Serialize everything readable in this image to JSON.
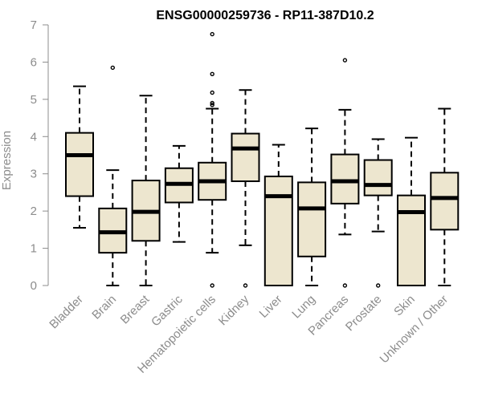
{
  "chart_data": {
    "type": "boxplot",
    "title": "ENSG00000259736 - RP11-387D10.2",
    "xlabel": "",
    "ylabel": "Expression",
    "ylim": [
      0,
      7
    ],
    "yticks": [
      0,
      1,
      2,
      3,
      4,
      5,
      6,
      7
    ],
    "grid": false,
    "legend": "none",
    "colors": {
      "box_fill": "#ede6cf",
      "outline": "#000000",
      "axis_text": "#8c8c8c"
    },
    "categories": [
      "Bladder",
      "Brain",
      "Breast",
      "Gastric",
      "Hematopoietic cells",
      "Kidney",
      "Liver",
      "Lung",
      "Pancreas",
      "Prostate",
      "Skin",
      "Unknown / Other"
    ],
    "boxes": [
      {
        "category": "Bladder",
        "whisker_low": 1.55,
        "q1": 2.4,
        "median": 3.5,
        "q3": 4.1,
        "whisker_high": 5.35,
        "outliers": []
      },
      {
        "category": "Brain",
        "whisker_low": 0.0,
        "q1": 0.88,
        "median": 1.43,
        "q3": 2.07,
        "whisker_high": 3.1,
        "outliers": [
          5.85
        ]
      },
      {
        "category": "Breast",
        "whisker_low": 0.0,
        "q1": 1.2,
        "median": 1.98,
        "q3": 2.82,
        "whisker_high": 5.1,
        "outliers": []
      },
      {
        "category": "Gastric",
        "whisker_low": 1.17,
        "q1": 2.23,
        "median": 2.73,
        "q3": 3.15,
        "whisker_high": 3.75,
        "outliers": []
      },
      {
        "category": "Hematopoietic cells",
        "whisker_low": 0.88,
        "q1": 2.3,
        "median": 2.8,
        "q3": 3.3,
        "whisker_high": 4.75,
        "outliers": [
          0.0,
          4.85,
          4.9,
          5.18,
          5.68,
          6.75
        ]
      },
      {
        "category": "Kidney",
        "whisker_low": 1.08,
        "q1": 2.8,
        "median": 3.68,
        "q3": 4.08,
        "whisker_high": 5.25,
        "outliers": [
          0.0
        ]
      },
      {
        "category": "Liver",
        "whisker_low": 0.0,
        "q1": 0.0,
        "median": 2.4,
        "q3": 2.93,
        "whisker_high": 3.78,
        "outliers": []
      },
      {
        "category": "Lung",
        "whisker_low": 0.0,
        "q1": 0.78,
        "median": 2.07,
        "q3": 2.77,
        "whisker_high": 4.22,
        "outliers": []
      },
      {
        "category": "Pancreas",
        "whisker_low": 1.37,
        "q1": 2.2,
        "median": 2.8,
        "q3": 3.52,
        "whisker_high": 4.72,
        "outliers": [
          0.0,
          6.05
        ]
      },
      {
        "category": "Prostate",
        "whisker_low": 1.45,
        "q1": 2.42,
        "median": 2.7,
        "q3": 3.37,
        "whisker_high": 3.93,
        "outliers": [
          0.0
        ]
      },
      {
        "category": "Skin",
        "whisker_low": 0.0,
        "q1": 0.0,
        "median": 1.97,
        "q3": 2.42,
        "whisker_high": 3.97,
        "outliers": []
      },
      {
        "category": "Unknown / Other",
        "whisker_low": 0.0,
        "q1": 1.5,
        "median": 2.35,
        "q3": 3.03,
        "whisker_high": 4.75,
        "outliers": []
      }
    ]
  }
}
